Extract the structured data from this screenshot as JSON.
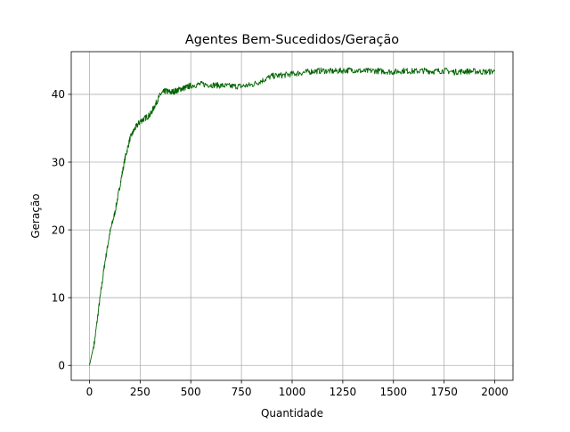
{
  "chart_data": {
    "type": "line",
    "title": "Agentes Bem-Sucedidos/Geração",
    "xlabel": "Quantidade",
    "ylabel": "Geração",
    "xlim": [
      -90,
      2090
    ],
    "ylim": [
      -2.2,
      46.3
    ],
    "xticks": [
      0,
      250,
      500,
      750,
      1000,
      1250,
      1500,
      1750,
      2000
    ],
    "xtick_labels": [
      "0",
      "250",
      "500",
      "750",
      "1000",
      "1250",
      "1500",
      "1750",
      "2000"
    ],
    "yticks": [
      0,
      10,
      20,
      30,
      40
    ],
    "ytick_labels": [
      "0",
      "10",
      "20",
      "30",
      "40"
    ],
    "grid": true,
    "legend": "none",
    "series": [
      {
        "color": "#006400",
        "x": [
          0,
          25,
          50,
          75,
          100,
          125,
          150,
          175,
          200,
          225,
          250,
          275,
          300,
          325,
          350,
          375,
          400,
          425,
          450,
          475,
          500,
          550,
          600,
          650,
          700,
          750,
          800,
          850,
          900,
          950,
          1000,
          1050,
          1100,
          1150,
          1200,
          1250,
          1300,
          1350,
          1400,
          1450,
          1500,
          1550,
          1600,
          1650,
          1700,
          1750,
          1800,
          1850,
          1900,
          1950,
          2000
        ],
        "y": [
          0,
          3.5,
          9.5,
          15,
          19.5,
          22.5,
          26.5,
          30.5,
          33.5,
          35,
          36,
          36.5,
          37,
          38.5,
          40,
          40.5,
          40.3,
          40.5,
          40.8,
          41,
          41.3,
          41.5,
          41.4,
          41.3,
          41.2,
          41.2,
          41.4,
          42,
          42.7,
          42.8,
          43,
          43.2,
          43.4,
          43.5,
          43.4,
          43.5,
          43.6,
          43.4,
          43.5,
          43.4,
          43.3,
          43.5,
          43.4,
          43.5,
          43.4,
          43.5,
          43.3,
          43.4,
          43.4,
          43.3,
          43.4
        ]
      }
    ]
  }
}
